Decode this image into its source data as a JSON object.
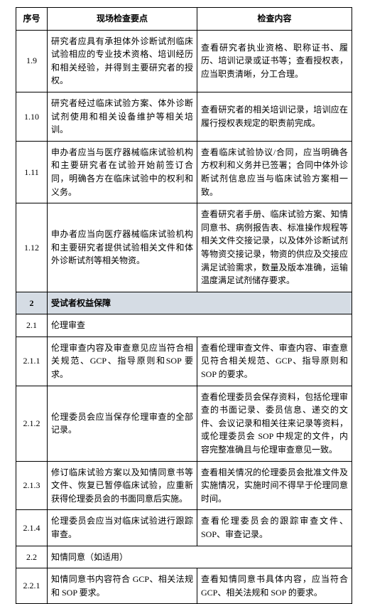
{
  "headers": {
    "num": "序号",
    "point": "现场检查要点",
    "content": "检查内容"
  },
  "rows": [
    {
      "type": "normal",
      "num": "1.9",
      "point": "研究者应具有承担体外诊断试剂临床试验相应的专业技术资格、培训经历和相关经验，并得到主要研究者的授权。",
      "content": "查看研究者执业资格、职称证书、履历、培训记录或证书等；查看授权表，应当职责清晰，分工合理。"
    },
    {
      "type": "normal",
      "num": "1.10",
      "point": "研究者经过临床试验方案、体外诊断试剂使用和相关设备维护等相关培训。",
      "content": "查看研究者的相关培训记录，培训应在履行授权表规定的职责前完成。"
    },
    {
      "type": "normal",
      "num": "1.11",
      "point": "申办者应当与医疗器械临床试验机构和主要研究者在试验开始前签订合同，明确各方在临床试验中的权利和义务。",
      "content": "查看临床试验协议/合同，应当明确各方权利和义务并已签署；合同中体外诊断试剂信息应当与临床试验方案相一致。"
    },
    {
      "type": "normal",
      "num": "1.12",
      "point": "申办者应当向医疗器械临床试验机构和主要研究者提供试验相关文件和体外诊断试剂等相关物资。",
      "content": "查看研究者手册、临床试验方案、知情同意书、病例报告表、标准操作规程等相关文件交接记录，以及体外诊断试剂等物资交接记录，物资的供应及交接应满足试验需求，数量及版本准确，运输温度满足试剂储存要求。"
    },
    {
      "type": "section",
      "num": "2",
      "label": "受试者权益保障"
    },
    {
      "type": "spanned",
      "num": "2.1",
      "label": "伦理审查"
    },
    {
      "type": "normal",
      "num": "2.1.1",
      "point": "伦理审查内容及审查意见应当符合相关规范、GCP、指导原则和SOP 要求。",
      "content": "查看伦理审查文件、审查内容、审查意见符合相关规范、GCP、指导原则和 SOP 的要求。"
    },
    {
      "type": "normal",
      "num": "2.1.2",
      "point": "伦理委员会应当保存伦理审查的全部记录。",
      "content": "查看伦理委员会保存资料，包括伦理审查的书面记录、委员信息、递交的文件、会议记录和相关往来记录等资料，或伦理委员会 SOP 中规定的文件，内容完整准确且与伦理审查意见一致。"
    },
    {
      "type": "normal",
      "num": "2.1.3",
      "point": "修订临床试验方案以及知情同意书等文件、恢复已暂停临床试验，应重新获得伦理委员会的书面同意后实施。",
      "content": "查看相关情况的伦理委员会批准文件及实施情况，实施时间不得早于伦理同意时间。"
    },
    {
      "type": "normal",
      "num": "2.1.4",
      "point": "伦理委员会应当对临床试验进行跟踪审查。",
      "content": "查看伦理委员会的跟踪审查文件、SOP、审查记录。"
    },
    {
      "type": "spanned",
      "num": "2.2",
      "label": "知情同意（如适用）"
    },
    {
      "type": "normal",
      "num": "2.2.1",
      "point": "知情同意书内容符合 GCP、相关法规和 SOP 要求。",
      "content": "查看知情同意书具体内容，应当符合GCP、相关法规和 SOP 的要求。"
    }
  ]
}
